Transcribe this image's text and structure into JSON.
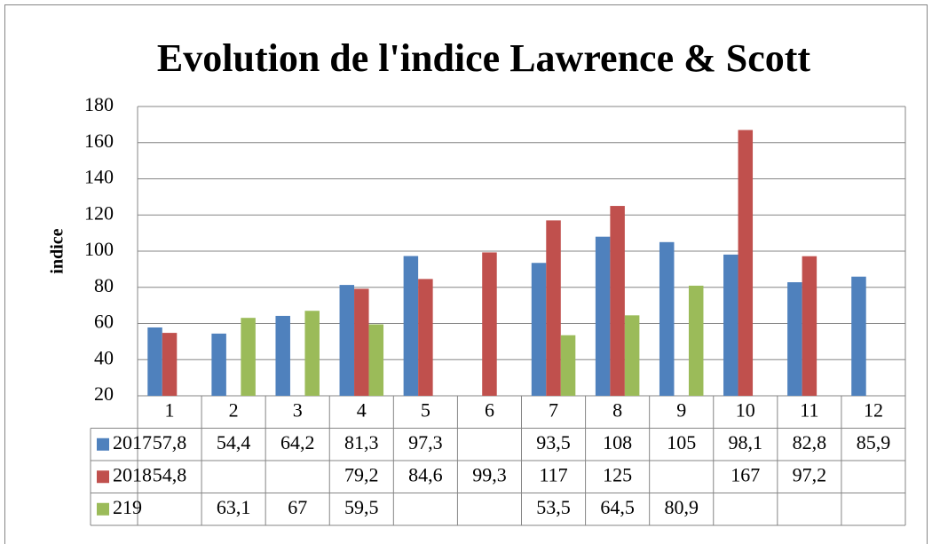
{
  "chart_data": {
    "type": "bar",
    "title": "Evolution de l'indice Lawrence & Scott",
    "y_label": "indice",
    "categories": [
      "1",
      "2",
      "3",
      "4",
      "5",
      "6",
      "7",
      "8",
      "9",
      "10",
      "11",
      "12"
    ],
    "series": [
      {
        "name": "2017",
        "color": "#4f81bd",
        "values": [
          57.8,
          54.4,
          64.2,
          81.3,
          97.3,
          null,
          93.5,
          108,
          105,
          98.1,
          82.8,
          85.9
        ],
        "value_labels": [
          "57,8",
          "54,4",
          "64,2",
          "81,3",
          "97,3",
          null,
          "93,5",
          "108",
          "105",
          "98,1",
          "82,8",
          "85,9"
        ]
      },
      {
        "name": "2018",
        "color": "#c0504d",
        "values": [
          54.8,
          null,
          null,
          79.2,
          84.6,
          99.3,
          117,
          125,
          null,
          167,
          97.2,
          null
        ],
        "value_labels": [
          "54,8",
          null,
          null,
          "79,2",
          "84,6",
          "99,3",
          "117",
          "125",
          null,
          "167",
          "97,2",
          null
        ]
      },
      {
        "name": "219",
        "color": "#9bbb59",
        "values": [
          null,
          63.1,
          67,
          59.5,
          null,
          null,
          53.5,
          64.5,
          80.9,
          null,
          null,
          null
        ],
        "value_labels": [
          null,
          "63,1",
          "67",
          "59,5",
          null,
          null,
          "53,5",
          "64,5",
          "80,9",
          null,
          null,
          null
        ]
      }
    ],
    "ylim": [
      20,
      180
    ],
    "yticks": [
      20,
      40,
      60,
      80,
      100,
      120,
      140,
      160,
      180
    ],
    "grid": true
  }
}
